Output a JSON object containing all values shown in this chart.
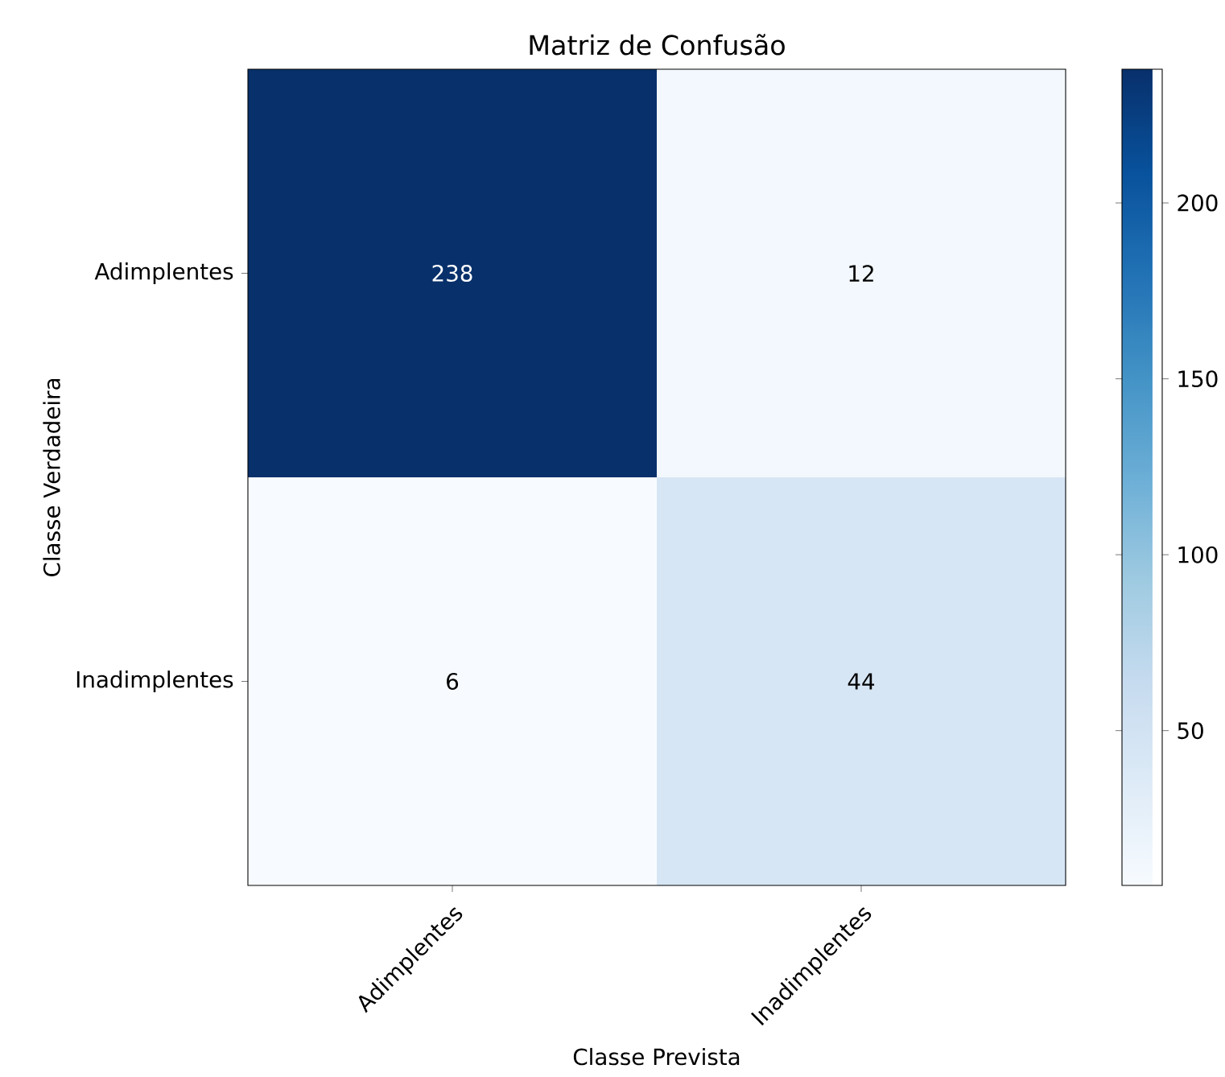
{
  "chart_data": {
    "type": "heatmap",
    "title": "Matriz de Confusão",
    "xlabel": "Classe Prevista",
    "ylabel": "Classe Verdadeira",
    "categories": [
      "Adimplentes",
      "Inadimplentes"
    ],
    "y_categories": [
      "Adimplentes",
      "Inadimplentes"
    ],
    "cells": [
      [
        238,
        12
      ],
      [
        6,
        44
      ]
    ],
    "cell_labels": [
      [
        "238",
        "12"
      ],
      [
        "6",
        "44"
      ]
    ],
    "clim": [
      6,
      238
    ],
    "cticks": [
      50,
      100,
      150,
      200
    ]
  }
}
